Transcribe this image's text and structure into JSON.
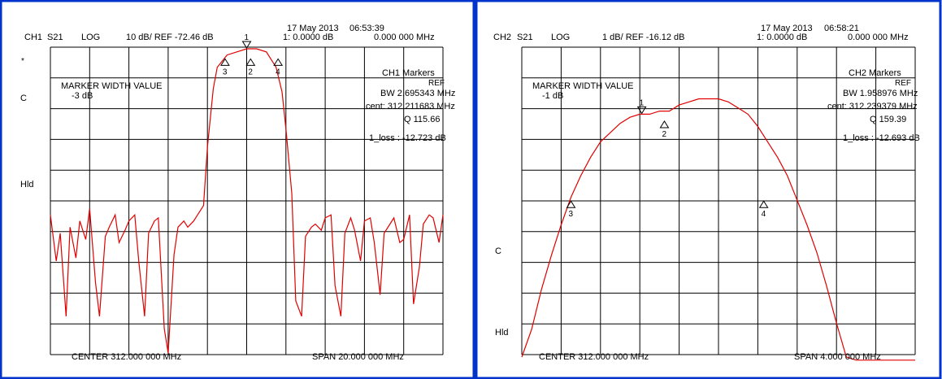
{
  "colors": {
    "border": "#0033cc",
    "trace": "#e00000",
    "grid": "#000000",
    "background": "#ffffff"
  },
  "icons": {
    "marker_triangle": "triangle-icon",
    "ref_pointer": "ref-arrow-icon"
  },
  "chart_data": [
    {
      "type": "line",
      "channel": "CH1",
      "param": "S21",
      "format": "LOG",
      "scale": "10 dB/ REF -72.46 dB",
      "date": "17 May 2013",
      "time": "06:53:39",
      "marker_readout": "1: 0.0000 dB",
      "marker_freq": "0.000 000 MHz",
      "side_small_1": "*",
      "side_small_2": "C",
      "side_hld": "Hld",
      "markers_title": "CH1 Markers",
      "markers_sub": "REF",
      "marker_width_label": "MARKER WIDTH VALUE",
      "marker_width_value": "-3 dB",
      "bw": "BW   2.695343 MHz",
      "cent": "cent:  312.211683 MHz",
      "q": "Q  115.66",
      "loss": "1_loss :  -12.723 dB",
      "center_label": "CENTER 312.000 000 MHz",
      "span_label": "SPAN  20.000 000 MHz",
      "x_range_mhz": [
        302,
        322
      ],
      "y_range_db": [
        -172.46,
        -72.46
      ],
      "ref_db": -72.46,
      "db_per_div": 10,
      "series": [
        {
          "x": [
            302.0,
            302.3,
            302.5,
            302.8,
            303.0,
            303.3,
            303.5,
            303.8,
            304.0,
            304.3,
            304.5,
            304.8,
            305.0,
            305.3,
            305.5,
            305.8,
            306.0,
            306.3,
            306.5,
            306.8,
            307.0,
            307.3,
            307.5,
            307.8,
            308.0,
            308.3,
            308.5,
            308.8,
            309.0,
            309.3,
            309.5,
            309.8,
            310.0,
            310.3,
            310.5,
            311.0,
            311.5,
            312.0,
            312.5,
            313.0,
            313.5,
            313.8,
            314.0,
            314.3,
            314.5,
            314.8,
            315.0,
            315.3,
            315.5,
            315.8,
            316.0,
            316.3,
            316.5,
            316.8,
            317.0,
            317.3,
            317.5,
            317.8,
            318.0,
            318.3,
            318.5,
            318.8,
            319.0,
            319.3,
            319.5,
            319.8,
            320.0,
            320.3,
            320.5,
            320.8,
            321.0,
            321.3,
            321.5,
            321.8,
            322.0
          ],
          "y": [
            -127,
            -142,
            -133,
            -160,
            -131,
            -141,
            -129,
            -135,
            -125,
            -149,
            -160,
            -134,
            -131,
            -127,
            -136,
            -132,
            -129,
            -127,
            -142,
            -160,
            -133,
            -129,
            -128,
            -164,
            -172,
            -140,
            -131,
            -129,
            -131,
            -129,
            -127,
            -124,
            -105,
            -86,
            -79,
            -75,
            -74,
            -73,
            -73,
            -74,
            -79,
            -87,
            -99,
            -120,
            -155,
            -160,
            -134,
            -131,
            -130,
            -132,
            -128,
            -127,
            -150,
            -160,
            -133,
            -128,
            -132,
            -142,
            -129,
            -128,
            -136,
            -153,
            -133,
            -130,
            -128,
            -136,
            -135,
            -127,
            -156,
            -144,
            -130,
            -127,
            -128,
            -136,
            -127
          ]
        }
      ],
      "markers": [
        {
          "label": "1",
          "x": 312.0,
          "y": -73.0
        },
        {
          "label": "2",
          "x": 312.2,
          "y": -76.0
        },
        {
          "label": "3",
          "x": 310.9,
          "y": -76.0
        },
        {
          "label": "4",
          "x": 313.6,
          "y": -76.0
        }
      ]
    },
    {
      "type": "line",
      "channel": "CH2",
      "param": "S21",
      "format": "LOG",
      "scale": "1 dB/ REF -16.12 dB",
      "date": "17 May 2013",
      "time": "06:58:21",
      "marker_readout": "1: 0.0000 dB",
      "marker_freq": "0.000 000 MHz",
      "side_small_1": "C",
      "side_hld": "Hld",
      "markers_title": "CH2 Markers",
      "markers_sub": "REF",
      "marker_width_label": "MARKER WIDTH VALUE",
      "marker_width_value": "-1 dB",
      "bw": "BW   1.958976 MHz",
      "cent": "cent:  312.239379 MHz",
      "q": "Q  159.39",
      "loss": "1_loss :  -12.693 dB",
      "center_label": "CENTER 312.000 000 MHz",
      "span_label": "SPAN  4.000 000 MHz",
      "x_range_mhz": [
        310,
        314
      ],
      "y_range_db": [
        -26.12,
        -16.12
      ],
      "ref_db": -16.12,
      "db_per_div": 1,
      "series": [
        {
          "x": [
            310.0,
            310.1,
            310.2,
            310.3,
            310.4,
            310.5,
            310.6,
            310.7,
            310.8,
            310.9,
            311.0,
            311.1,
            311.2,
            311.3,
            311.4,
            311.5,
            311.6,
            311.7,
            311.8,
            311.9,
            312.0,
            312.1,
            312.2,
            312.3,
            312.4,
            312.5,
            312.6,
            312.7,
            312.8,
            312.9,
            313.0,
            313.1,
            313.2,
            313.3,
            313.4,
            313.5,
            313.6,
            313.7,
            313.8,
            313.9,
            314.0
          ],
          "y": [
            -26.2,
            -25.3,
            -24.0,
            -22.9,
            -21.9,
            -21.0,
            -20.3,
            -19.7,
            -19.2,
            -18.9,
            -18.6,
            -18.4,
            -18.3,
            -18.3,
            -18.2,
            -18.2,
            -18.0,
            -17.9,
            -17.8,
            -17.8,
            -17.8,
            -17.9,
            -18.1,
            -18.3,
            -18.7,
            -19.2,
            -19.7,
            -20.3,
            -21.1,
            -21.9,
            -22.8,
            -23.9,
            -25.1,
            -26.2,
            -26.3,
            -26.3,
            -26.3,
            -26.3,
            -26.3,
            -26.3,
            -26.3
          ]
        }
      ],
      "markers": [
        {
          "label": "1",
          "x": 311.22,
          "y": -18.3
        },
        {
          "label": "2",
          "x": 311.45,
          "y": -18.5
        },
        {
          "label": "3",
          "x": 310.5,
          "y": -21.1
        },
        {
          "label": "4",
          "x": 312.46,
          "y": -21.1
        }
      ]
    }
  ]
}
